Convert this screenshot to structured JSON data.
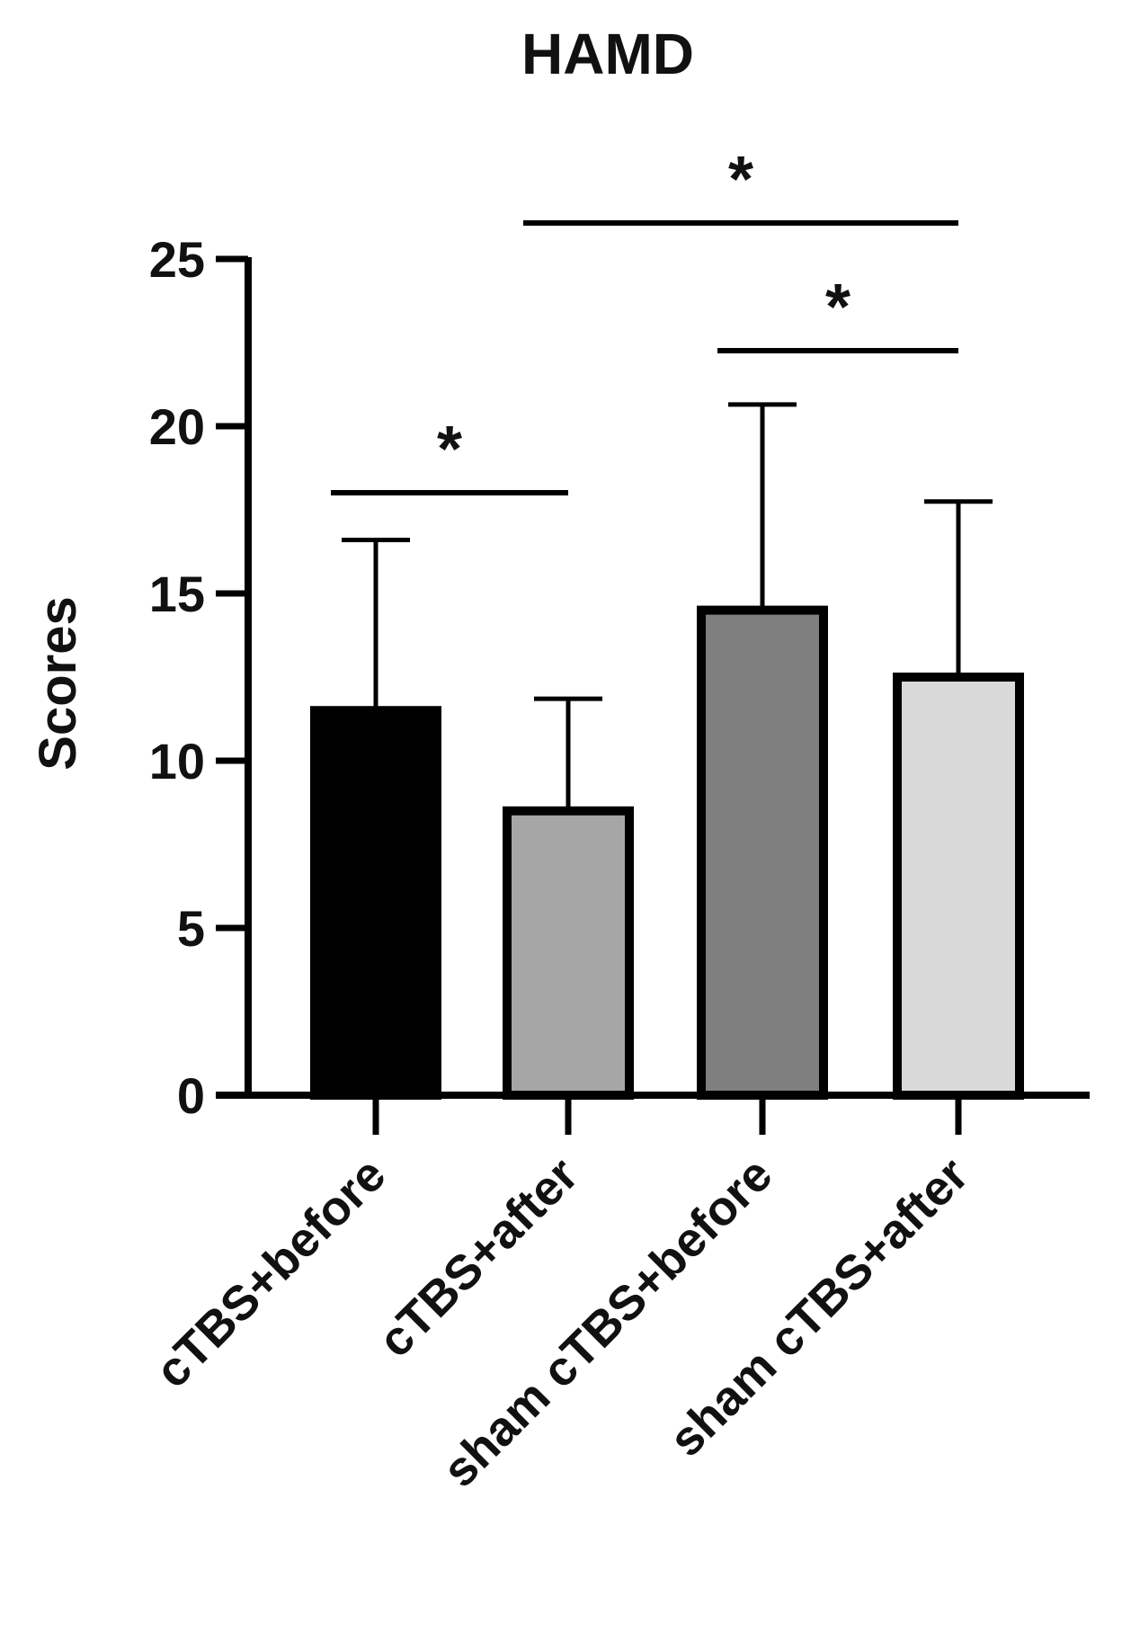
{
  "chart_data": {
    "type": "bar",
    "title": "HAMD",
    "xlabel": "",
    "ylabel": "Scores",
    "ylim": [
      0,
      25
    ],
    "yticks": [
      0,
      5,
      10,
      15,
      20,
      25
    ],
    "categories": [
      "cTBS+before",
      "cTBS+after",
      "sham cTBS+before",
      "sham cTBS+after"
    ],
    "values": [
      11.5,
      8.5,
      14.5,
      12.5
    ],
    "error_upper": [
      5.1,
      3.35,
      6.15,
      5.25
    ],
    "colors": [
      "#000000",
      "#a6a6a6",
      "#7f7f7f",
      "#d9d9d9"
    ],
    "grid": false,
    "legend": "none",
    "significance": [
      {
        "from": 0,
        "to": 1,
        "label": "*"
      },
      {
        "from": 2,
        "to": 3,
        "label": "*"
      },
      {
        "from": 1,
        "to": 3,
        "label": "*"
      }
    ]
  }
}
